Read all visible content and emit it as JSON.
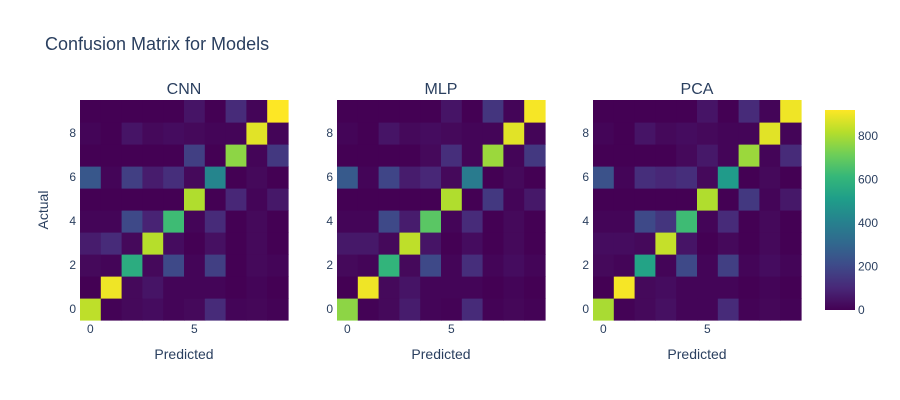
{
  "chart_data": {
    "type": "heatmap",
    "title": "Confusion Matrix for Models",
    "colorscale": "viridis",
    "colorbar": {
      "range": [
        0,
        920
      ],
      "ticks": [
        0,
        200,
        400,
        600,
        800
      ]
    },
    "panels": [
      {
        "title": "CNN",
        "xlabel": "Predicted",
        "ylabel": "Actual",
        "x_ticks": [
          0,
          5
        ],
        "y_ticks": [
          0,
          2,
          4,
          6,
          8
        ],
        "z": [
          [
            830,
            5,
            20,
            30,
            10,
            20,
            110,
            10,
            15,
            5
          ],
          [
            0,
            900,
            20,
            50,
            10,
            10,
            10,
            0,
            10,
            0
          ],
          [
            20,
            10,
            570,
            20,
            200,
            10,
            170,
            0,
            20,
            10
          ],
          [
            70,
            110,
            20,
            820,
            30,
            0,
            40,
            0,
            20,
            0
          ],
          [
            10,
            10,
            200,
            90,
            630,
            10,
            110,
            0,
            20,
            0
          ],
          [
            0,
            0,
            0,
            0,
            0,
            810,
            0,
            100,
            10,
            60
          ],
          [
            250,
            10,
            170,
            70,
            120,
            20,
            420,
            0,
            20,
            0
          ],
          [
            0,
            0,
            0,
            0,
            0,
            170,
            0,
            760,
            10,
            150
          ],
          [
            10,
            0,
            50,
            20,
            30,
            20,
            10,
            10,
            880,
            10
          ],
          [
            0,
            0,
            0,
            0,
            0,
            50,
            0,
            110,
            10,
            920
          ]
        ]
      },
      {
        "title": "MLP",
        "xlabel": "Predicted",
        "ylabel": "",
        "x_ticks": [
          0,
          5
        ],
        "y_ticks": [
          0,
          2,
          4,
          6,
          8
        ],
        "z": [
          [
            760,
            5,
            20,
            70,
            10,
            5,
            110,
            5,
            15,
            5
          ],
          [
            0,
            900,
            20,
            50,
            10,
            10,
            10,
            0,
            10,
            0
          ],
          [
            20,
            10,
            600,
            20,
            200,
            10,
            120,
            10,
            30,
            10
          ],
          [
            60,
            60,
            20,
            830,
            50,
            0,
            30,
            0,
            20,
            0
          ],
          [
            10,
            10,
            200,
            70,
            680,
            10,
            110,
            0,
            20,
            0
          ],
          [
            0,
            0,
            0,
            0,
            0,
            810,
            0,
            150,
            10,
            60
          ],
          [
            260,
            10,
            190,
            70,
            100,
            20,
            380,
            0,
            20,
            0
          ],
          [
            0,
            0,
            0,
            0,
            20,
            120,
            10,
            780,
            10,
            150
          ],
          [
            10,
            0,
            50,
            20,
            30,
            20,
            10,
            10,
            880,
            10
          ],
          [
            0,
            0,
            0,
            0,
            0,
            50,
            0,
            140,
            10,
            910
          ]
        ]
      },
      {
        "title": "PCA",
        "xlabel": "Predicted",
        "ylabel": "",
        "x_ticks": [
          0,
          5
        ],
        "y_ticks": [
          0,
          2,
          4,
          6,
          8
        ],
        "z": [
          [
            800,
            5,
            20,
            40,
            10,
            10,
            110,
            5,
            15,
            5
          ],
          [
            0,
            910,
            20,
            30,
            10,
            10,
            10,
            0,
            10,
            0
          ],
          [
            20,
            10,
            530,
            10,
            200,
            10,
            170,
            10,
            30,
            10
          ],
          [
            30,
            30,
            20,
            840,
            50,
            0,
            20,
            0,
            20,
            0
          ],
          [
            10,
            10,
            200,
            140,
            630,
            10,
            110,
            0,
            20,
            0
          ],
          [
            0,
            0,
            0,
            0,
            0,
            810,
            0,
            150,
            10,
            60
          ],
          [
            230,
            10,
            120,
            100,
            120,
            20,
            500,
            0,
            20,
            0
          ],
          [
            0,
            0,
            0,
            0,
            20,
            60,
            10,
            780,
            10,
            110
          ],
          [
            10,
            0,
            50,
            20,
            30,
            20,
            10,
            10,
            880,
            10
          ],
          [
            0,
            0,
            0,
            0,
            0,
            50,
            0,
            110,
            10,
            900
          ]
        ]
      }
    ]
  }
}
